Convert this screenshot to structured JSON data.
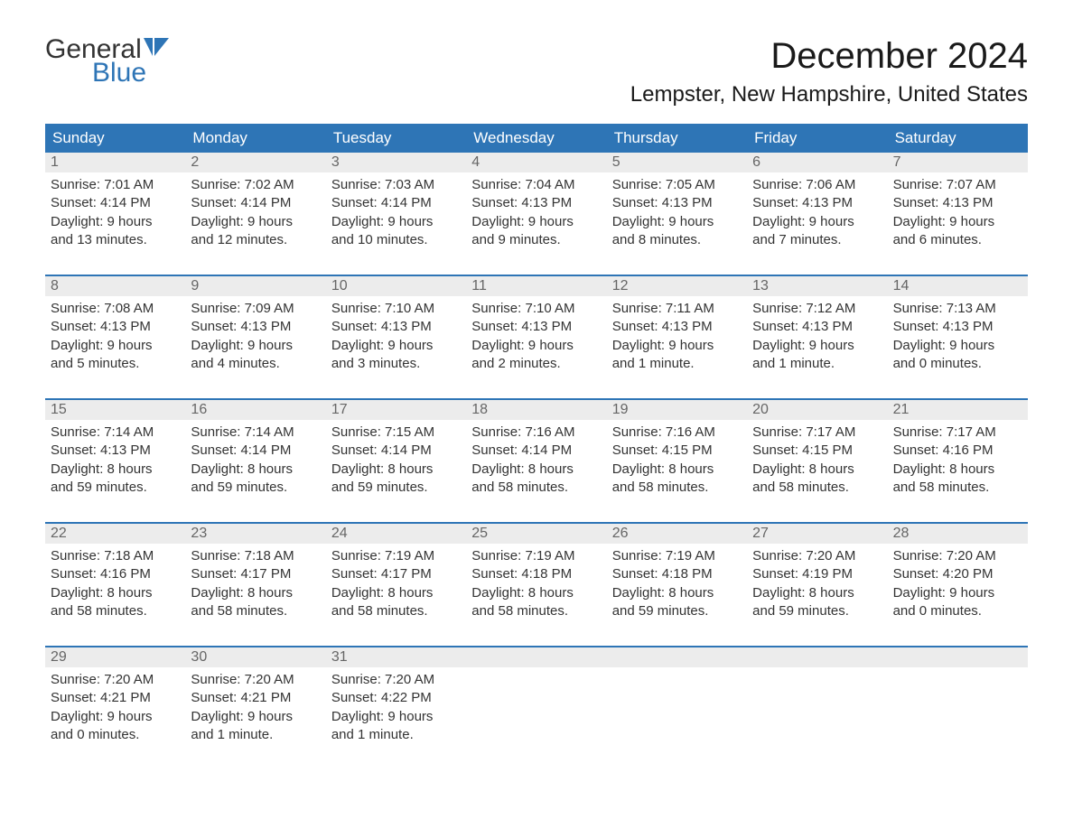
{
  "logo": {
    "top": "General",
    "bottom": "Blue"
  },
  "title": "December 2024",
  "location": "Lempster, New Hampshire, United States",
  "colors": {
    "header_bg": "#2e75b6",
    "header_text": "#ffffff",
    "week_border": "#2e75b6",
    "daynum_bg": "#ececec",
    "daynum_text": "#666666",
    "body_text": "#333333",
    "logo_blue": "#2e75b6"
  },
  "day_names": [
    "Sunday",
    "Monday",
    "Tuesday",
    "Wednesday",
    "Thursday",
    "Friday",
    "Saturday"
  ],
  "weeks": [
    [
      {
        "n": "1",
        "sunrise": "7:01 AM",
        "sunset": "4:14 PM",
        "daylight": "9 hours and 13 minutes."
      },
      {
        "n": "2",
        "sunrise": "7:02 AM",
        "sunset": "4:14 PM",
        "daylight": "9 hours and 12 minutes."
      },
      {
        "n": "3",
        "sunrise": "7:03 AM",
        "sunset": "4:14 PM",
        "daylight": "9 hours and 10 minutes."
      },
      {
        "n": "4",
        "sunrise": "7:04 AM",
        "sunset": "4:13 PM",
        "daylight": "9 hours and 9 minutes."
      },
      {
        "n": "5",
        "sunrise": "7:05 AM",
        "sunset": "4:13 PM",
        "daylight": "9 hours and 8 minutes."
      },
      {
        "n": "6",
        "sunrise": "7:06 AM",
        "sunset": "4:13 PM",
        "daylight": "9 hours and 7 minutes."
      },
      {
        "n": "7",
        "sunrise": "7:07 AM",
        "sunset": "4:13 PM",
        "daylight": "9 hours and 6 minutes."
      }
    ],
    [
      {
        "n": "8",
        "sunrise": "7:08 AM",
        "sunset": "4:13 PM",
        "daylight": "9 hours and 5 minutes."
      },
      {
        "n": "9",
        "sunrise": "7:09 AM",
        "sunset": "4:13 PM",
        "daylight": "9 hours and 4 minutes."
      },
      {
        "n": "10",
        "sunrise": "7:10 AM",
        "sunset": "4:13 PM",
        "daylight": "9 hours and 3 minutes."
      },
      {
        "n": "11",
        "sunrise": "7:10 AM",
        "sunset": "4:13 PM",
        "daylight": "9 hours and 2 minutes."
      },
      {
        "n": "12",
        "sunrise": "7:11 AM",
        "sunset": "4:13 PM",
        "daylight": "9 hours and 1 minute."
      },
      {
        "n": "13",
        "sunrise": "7:12 AM",
        "sunset": "4:13 PM",
        "daylight": "9 hours and 1 minute."
      },
      {
        "n": "14",
        "sunrise": "7:13 AM",
        "sunset": "4:13 PM",
        "daylight": "9 hours and 0 minutes."
      }
    ],
    [
      {
        "n": "15",
        "sunrise": "7:14 AM",
        "sunset": "4:13 PM",
        "daylight": "8 hours and 59 minutes."
      },
      {
        "n": "16",
        "sunrise": "7:14 AM",
        "sunset": "4:14 PM",
        "daylight": "8 hours and 59 minutes."
      },
      {
        "n": "17",
        "sunrise": "7:15 AM",
        "sunset": "4:14 PM",
        "daylight": "8 hours and 59 minutes."
      },
      {
        "n": "18",
        "sunrise": "7:16 AM",
        "sunset": "4:14 PM",
        "daylight": "8 hours and 58 minutes."
      },
      {
        "n": "19",
        "sunrise": "7:16 AM",
        "sunset": "4:15 PM",
        "daylight": "8 hours and 58 minutes."
      },
      {
        "n": "20",
        "sunrise": "7:17 AM",
        "sunset": "4:15 PM",
        "daylight": "8 hours and 58 minutes."
      },
      {
        "n": "21",
        "sunrise": "7:17 AM",
        "sunset": "4:16 PM",
        "daylight": "8 hours and 58 minutes."
      }
    ],
    [
      {
        "n": "22",
        "sunrise": "7:18 AM",
        "sunset": "4:16 PM",
        "daylight": "8 hours and 58 minutes."
      },
      {
        "n": "23",
        "sunrise": "7:18 AM",
        "sunset": "4:17 PM",
        "daylight": "8 hours and 58 minutes."
      },
      {
        "n": "24",
        "sunrise": "7:19 AM",
        "sunset": "4:17 PM",
        "daylight": "8 hours and 58 minutes."
      },
      {
        "n": "25",
        "sunrise": "7:19 AM",
        "sunset": "4:18 PM",
        "daylight": "8 hours and 58 minutes."
      },
      {
        "n": "26",
        "sunrise": "7:19 AM",
        "sunset": "4:18 PM",
        "daylight": "8 hours and 59 minutes."
      },
      {
        "n": "27",
        "sunrise": "7:20 AM",
        "sunset": "4:19 PM",
        "daylight": "8 hours and 59 minutes."
      },
      {
        "n": "28",
        "sunrise": "7:20 AM",
        "sunset": "4:20 PM",
        "daylight": "9 hours and 0 minutes."
      }
    ],
    [
      {
        "n": "29",
        "sunrise": "7:20 AM",
        "sunset": "4:21 PM",
        "daylight": "9 hours and 0 minutes."
      },
      {
        "n": "30",
        "sunrise": "7:20 AM",
        "sunset": "4:21 PM",
        "daylight": "9 hours and 1 minute."
      },
      {
        "n": "31",
        "sunrise": "7:20 AM",
        "sunset": "4:22 PM",
        "daylight": "9 hours and 1 minute."
      },
      null,
      null,
      null,
      null
    ]
  ],
  "labels": {
    "sunrise": "Sunrise:",
    "sunset": "Sunset:",
    "daylight": "Daylight:"
  }
}
